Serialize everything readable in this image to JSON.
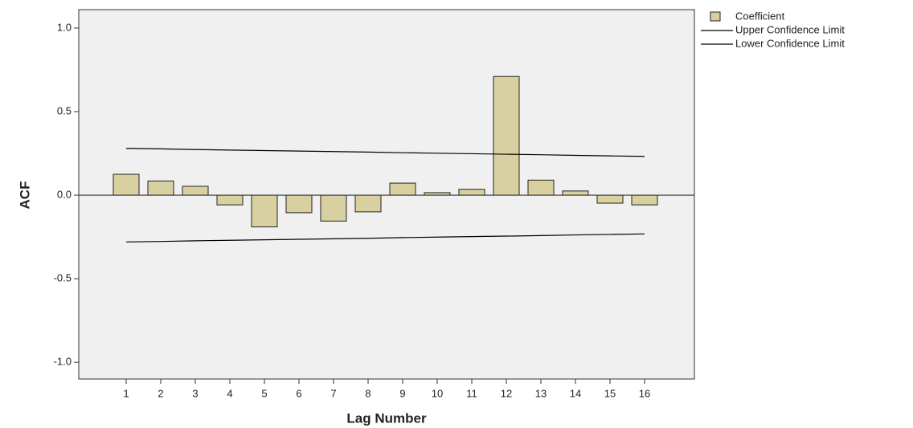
{
  "chart_data": {
    "type": "bar",
    "x_label": "Lag Number",
    "y_label": "ACF",
    "categories": [
      "1",
      "2",
      "3",
      "4",
      "5",
      "6",
      "7",
      "8",
      "9",
      "10",
      "11",
      "12",
      "13",
      "14",
      "15",
      "16"
    ],
    "series": [
      {
        "name": "Coefficient",
        "type": "bar",
        "color": "#d9d0a2",
        "values": [
          0.125,
          0.085,
          0.053,
          -0.058,
          -0.19,
          -0.105,
          -0.155,
          -0.1,
          0.072,
          0.015,
          0.035,
          0.71,
          0.09,
          0.025,
          -0.048,
          -0.058
        ]
      },
      {
        "name": "Upper Confidence Limit",
        "type": "line",
        "color": "#000000",
        "values": [
          0.28,
          0.277,
          0.273,
          0.27,
          0.267,
          0.264,
          0.261,
          0.258,
          0.254,
          0.251,
          0.248,
          0.245,
          0.242,
          0.238,
          0.235,
          0.232
        ]
      },
      {
        "name": "Lower Confidence Limit",
        "type": "line",
        "color": "#000000",
        "values": [
          -0.28,
          -0.277,
          -0.273,
          -0.27,
          -0.267,
          -0.264,
          -0.261,
          -0.258,
          -0.254,
          -0.251,
          -0.248,
          -0.245,
          -0.242,
          -0.238,
          -0.235,
          -0.232
        ]
      }
    ],
    "ylim": [
      -1.1,
      1.11
    ],
    "yticks": [
      {
        "value": -1.0,
        "label": "-1.0"
      },
      -0.5,
      {
        "value": 0.0,
        "label": "0.0"
      },
      0.5,
      {
        "value": 1.0,
        "label": "1.0"
      }
    ],
    "grid": false
  }
}
